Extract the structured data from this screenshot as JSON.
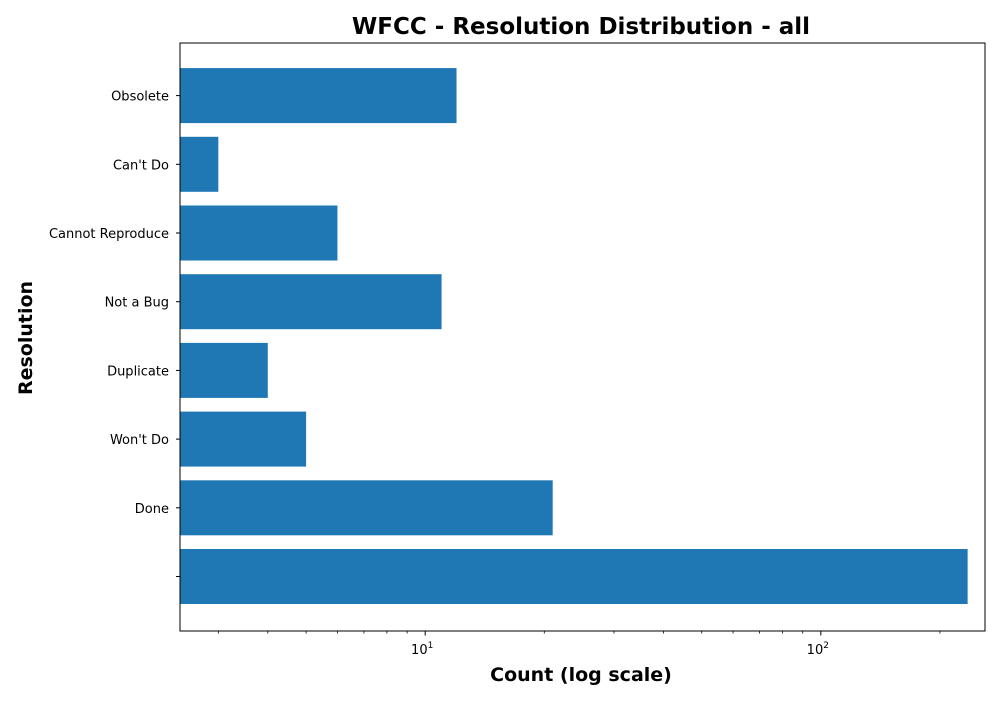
{
  "chart_data": {
    "type": "bar",
    "orientation": "horizontal",
    "title": "WFCC - Resolution Distribution - all",
    "xlabel": "Count (log scale)",
    "ylabel": "Resolution",
    "xscale": "log",
    "xlim": [
      2.4,
      260
    ],
    "categories": [
      "",
      "Done",
      "Won't Do",
      "Duplicate",
      "Not a Bug",
      "Cannot Reproduce",
      "Can't Do",
      "Obsolete"
    ],
    "values": [
      235,
      21,
      5,
      4,
      11,
      6,
      3,
      12
    ],
    "x_ticks": [
      {
        "value": 10,
        "base": "10",
        "exponent": "1"
      },
      {
        "value": 100,
        "base": "10",
        "exponent": "2"
      }
    ],
    "bar_color": "#1f77b4",
    "grid": false,
    "legend": "none"
  }
}
